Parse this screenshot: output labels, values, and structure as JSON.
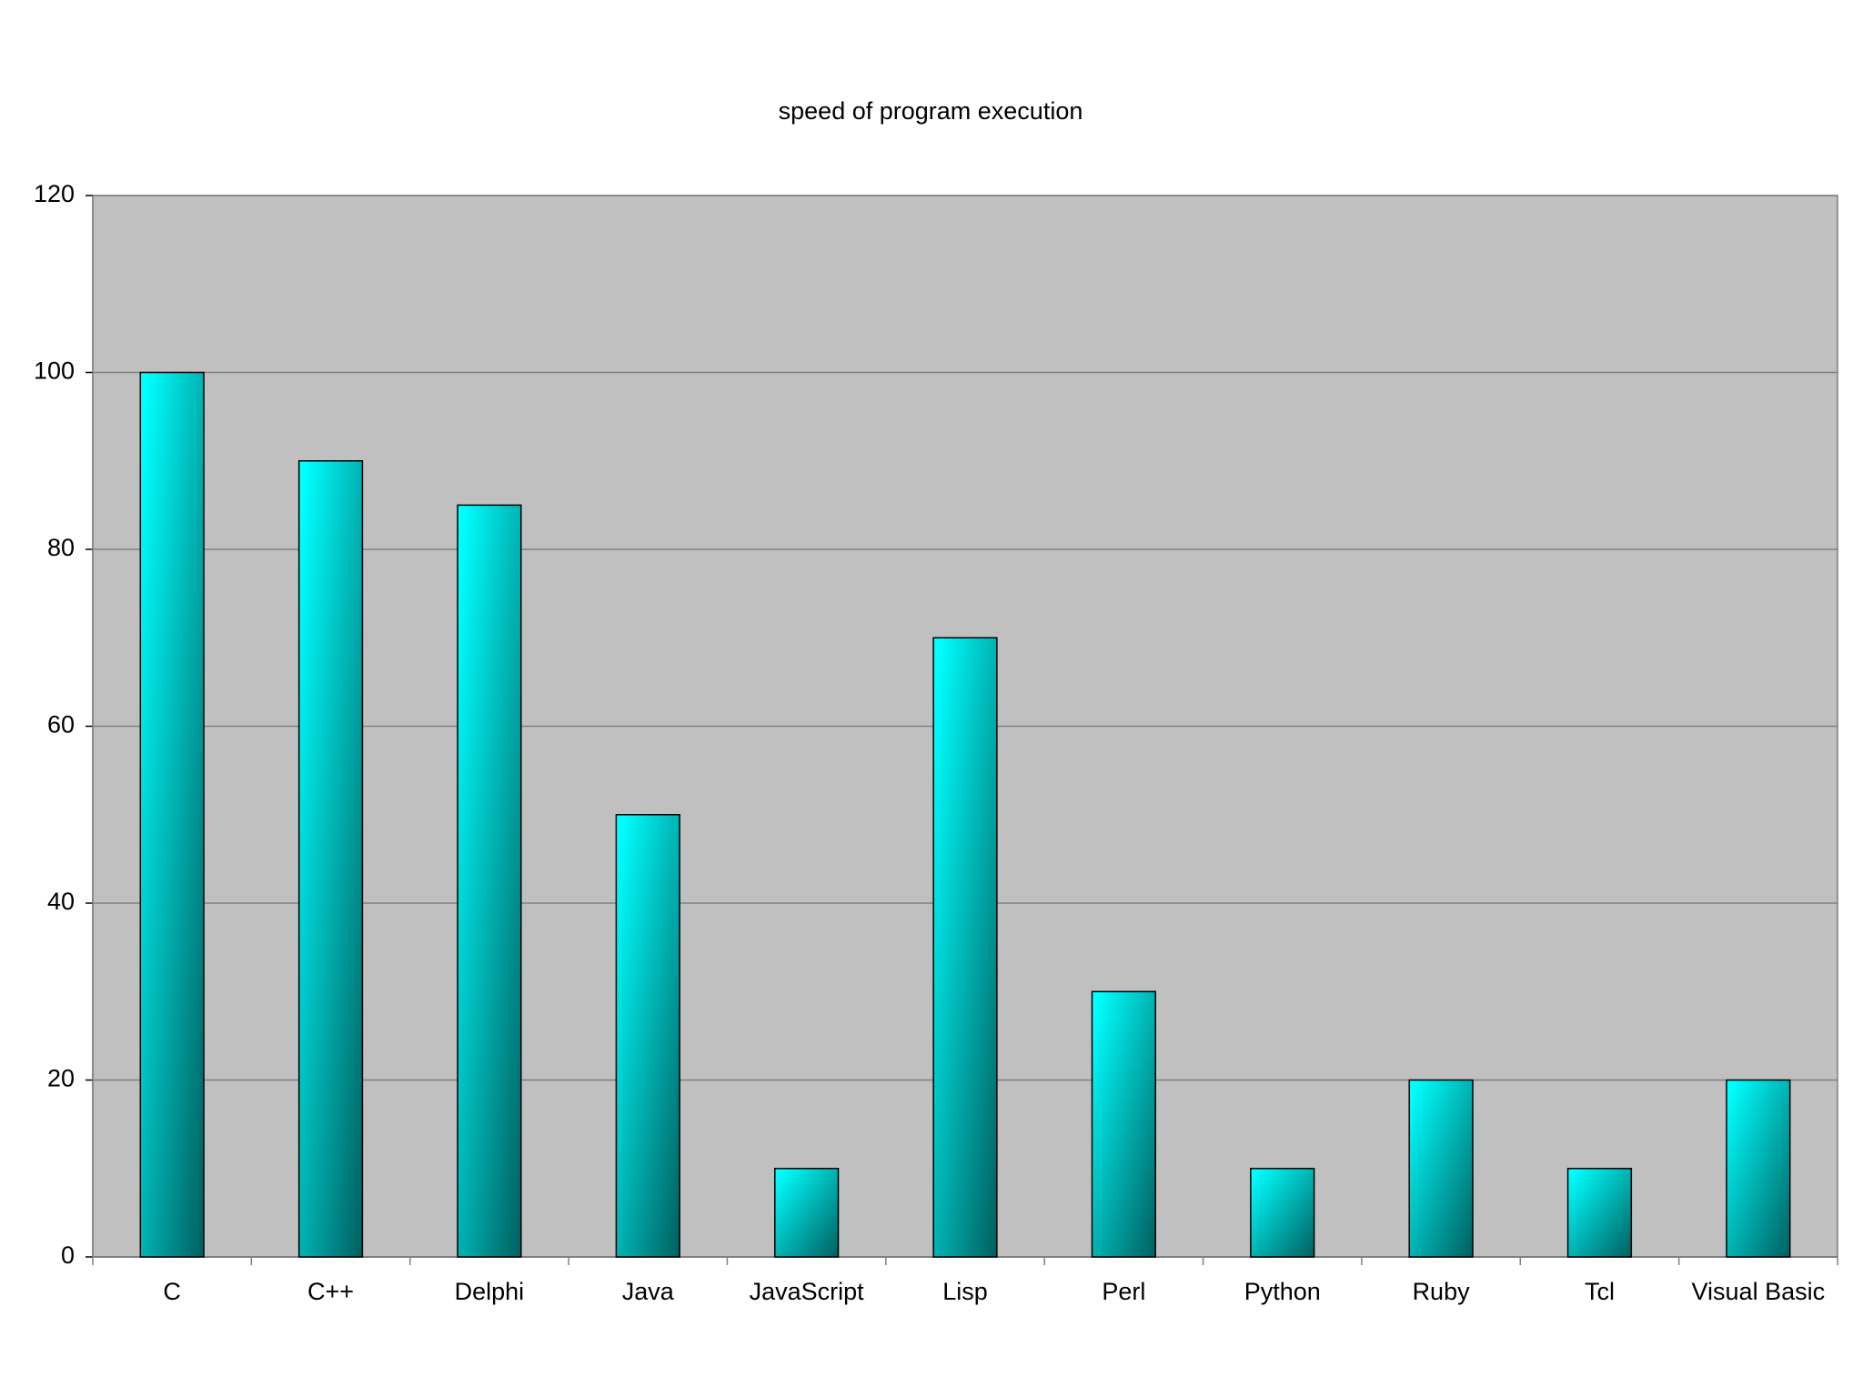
{
  "chart_data": {
    "type": "bar",
    "title": "speed of program execution",
    "categories": [
      "C",
      "C++",
      "Delphi",
      "Java",
      "JavaScript",
      "Lisp",
      "Perl",
      "Python",
      "Ruby",
      "Tcl",
      "Visual Basic"
    ],
    "values": [
      100,
      90,
      85,
      50,
      10,
      70,
      30,
      10,
      20,
      10,
      20
    ],
    "color": "#00ffff",
    "ylim": [
      0,
      120
    ],
    "yticks": [
      0,
      20,
      40,
      60,
      80,
      100,
      120
    ],
    "grid": true
  }
}
